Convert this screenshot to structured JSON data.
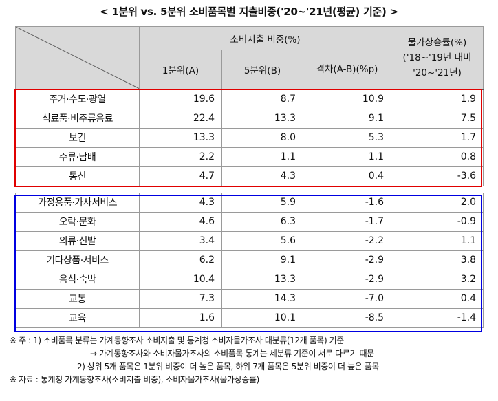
{
  "title": "< 1분위 vs. 5분위 소비품목별 지출비중('20~'21년(평균) 기준) >",
  "header": {
    "spending_share": "소비지출 비중(%)",
    "q1": "1분위(A)",
    "q5": "5분위(B)",
    "diff": "격차(A-B)(%p)",
    "inflation": "물가상승률(%)('18~'19년 대비 '20~'21년)"
  },
  "rows": [
    {
      "name": "주거·수도·광열",
      "q1": "19.6",
      "q5": "8.7",
      "diff": "10.9",
      "infl": "1.9"
    },
    {
      "name": "식료품·비주류음료",
      "q1": "22.4",
      "q5": "13.3",
      "diff": "9.1",
      "infl": "7.5"
    },
    {
      "name": "보건",
      "q1": "13.3",
      "q5": "8.0",
      "diff": "5.3",
      "infl": "1.7"
    },
    {
      "name": "주류·담배",
      "q1": "2.2",
      "q5": "1.1",
      "diff": "1.1",
      "infl": "0.8"
    },
    {
      "name": "통신",
      "q1": "4.7",
      "q5": "4.3",
      "diff": "0.4",
      "infl": "-3.6"
    },
    {
      "name": "가정용품·가사서비스",
      "q1": "4.3",
      "q5": "5.9",
      "diff": "-1.6",
      "infl": "2.0"
    },
    {
      "name": "오락·문화",
      "q1": "4.6",
      "q5": "6.3",
      "diff": "-1.7",
      "infl": "-0.9"
    },
    {
      "name": "의류·신발",
      "q1": "3.4",
      "q5": "5.6",
      "diff": "-2.2",
      "infl": "1.1"
    },
    {
      "name": "기타상품·서비스",
      "q1": "6.2",
      "q5": "9.1",
      "diff": "-2.9",
      "infl": "3.8"
    },
    {
      "name": "음식·숙박",
      "q1": "10.4",
      "q5": "13.3",
      "diff": "-2.9",
      "infl": "3.2"
    },
    {
      "name": "교통",
      "q1": "7.3",
      "q5": "14.3",
      "diff": "-7.0",
      "infl": "0.4"
    },
    {
      "name": "교육",
      "q1": "1.6",
      "q5": "10.1",
      "diff": "-8.5",
      "infl": "-1.4"
    }
  ],
  "notes": {
    "line1": "※ 주 : 1) 소비품목 분류는 가계동향조사 소비지출 및 통계청 소비자물가조사 대분류(12개 품목) 기준",
    "line2": "→ 가계동향조사와 소비자물가조사의 소비품목 통계는 세분류 기준이 서로 다르기 때문",
    "line3": "2) 상위 5개 품목은 1분위 비중이 더 높은 품목, 하위 7개 품목은 5분위 비중이 더 높은 품목",
    "source": "※ 자료 : 통계청 가계동향조사(소비지출 비중), 소비자물가조사(물가상승률)"
  },
  "colors": {
    "highlight_top5": "#e00000",
    "highlight_bottom7": "#0000e0",
    "header_bg": "#d9d9d9"
  }
}
